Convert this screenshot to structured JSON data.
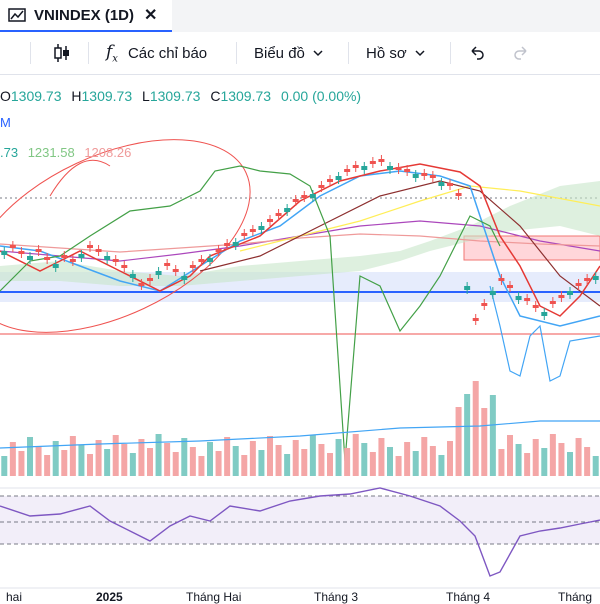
{
  "tab": {
    "title": "VNINDEX (1D)",
    "close_icon": "close-icon"
  },
  "toolbar": {
    "indicators_label": "Các chỉ báo",
    "chart_type_label": "Biểu đồ",
    "profile_label": "Hồ sơ"
  },
  "legend": {
    "o_key": "O",
    "o_val": "1309.73",
    "h_key": "H",
    "h_val": "1309.73",
    "l_key": "L",
    "l_val": "1309.73",
    "c_key": "C",
    "c_val": "1309.73",
    "change": "0.00 (0.00%)"
  },
  "indicator2": {
    "label": "M"
  },
  "indicator3": {
    "v1": ".73",
    "v2": "1231.58",
    "v3": "1208.26"
  },
  "x_axis": {
    "labels": [
      "hai",
      "2025",
      "Tháng Hai",
      "Tháng 3",
      "Tháng 4",
      "Tháng"
    ]
  },
  "colors": {
    "up": "#26a69a",
    "down": "#ef5350",
    "accent": "#2962ff",
    "rsi": "#7e57c2",
    "cloud_green": "#c8e6c9",
    "cloud_red": "#ffcdd2"
  }
}
